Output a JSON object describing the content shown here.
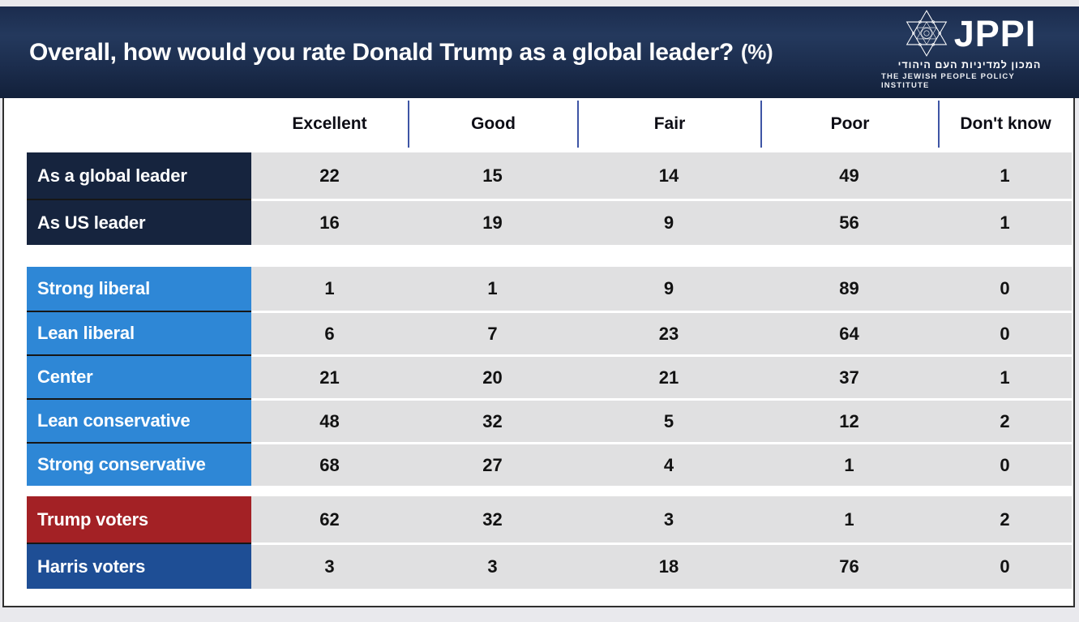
{
  "title": "Overall, how would you rate Donald Trump as a global leader?",
  "title_suffix": "(%)",
  "logo": {
    "name": "JPPI",
    "hebrew_line": "המכון למדיניות העם היהודי",
    "english_line": "THE JEWISH PEOPLE POLICY INSTITUTE",
    "icon": "star-of-david-icon"
  },
  "colors": {
    "title_band_navy": "#1d2f50",
    "overall_label_navy": "#16243e",
    "leaning_label_blue": "#2e87d6",
    "trump_red": "#a32125",
    "harris_blue": "#1e4e95",
    "cell_gray": "#e0e0e1",
    "header_separator_blue": "#3e55a5",
    "page_background": "#e9e9ed"
  },
  "chart_data": {
    "type": "table",
    "title": "Overall, how would you rate Donald Trump as a global leader? (%)",
    "columns": [
      "Excellent",
      "Good",
      "Fair",
      "Poor",
      "Don't know"
    ],
    "groups": [
      {
        "name": "overall-ratings",
        "rows": [
          {
            "label": "As a global leader",
            "values": [
              22,
              15,
              14,
              49,
              1
            ],
            "color": "#16243e"
          },
          {
            "label": "As US leader",
            "values": [
              16,
              19,
              9,
              56,
              1
            ],
            "color": "#16243e"
          }
        ]
      },
      {
        "name": "political-leaning",
        "rows": [
          {
            "label": "Strong liberal",
            "values": [
              1,
              1,
              9,
              89,
              0
            ],
            "color": "#2e87d6"
          },
          {
            "label": "Lean liberal",
            "values": [
              6,
              7,
              23,
              64,
              0
            ],
            "color": "#2e87d6"
          },
          {
            "label": "Center",
            "values": [
              21,
              20,
              21,
              37,
              1
            ],
            "color": "#2e87d6"
          },
          {
            "label": "Lean conservative",
            "values": [
              48,
              32,
              5,
              12,
              2
            ],
            "color": "#2e87d6"
          },
          {
            "label": "Strong conservative",
            "values": [
              68,
              27,
              4,
              1,
              0
            ],
            "color": "#2e87d6"
          }
        ]
      },
      {
        "name": "2024-voters",
        "rows": [
          {
            "label": "Trump voters",
            "values": [
              62,
              32,
              3,
              1,
              2
            ],
            "color": "#a32125"
          },
          {
            "label": "Harris voters",
            "values": [
              3,
              3,
              18,
              76,
              0
            ],
            "color": "#1e4e95"
          }
        ]
      }
    ]
  }
}
